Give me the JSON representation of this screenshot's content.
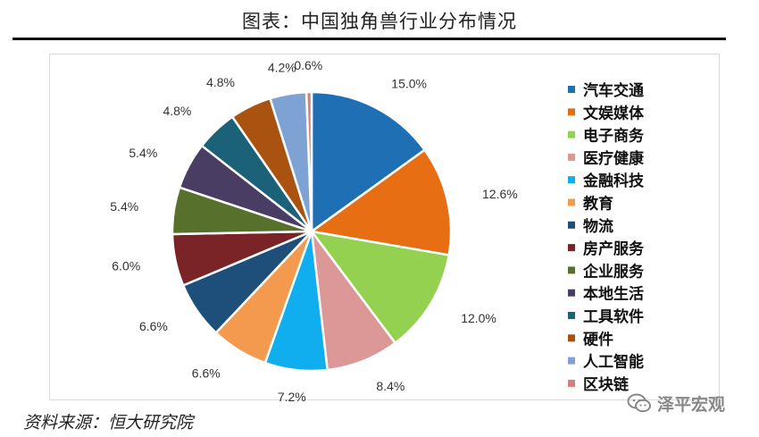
{
  "title": "图表：中国独角兽行业分布情况",
  "source": "资料来源：恒大研究院",
  "watermark": "泽平宏观",
  "chart_data": {
    "type": "pie",
    "title": "图表：中国独角兽行业分布情况",
    "legend_position": "right",
    "unit": "%",
    "slices": [
      {
        "label": "汽车交通",
        "value": 15.0,
        "display": "15.0%",
        "color": "#1F6FB4"
      },
      {
        "label": "文娱媒体",
        "value": 12.6,
        "display": "12.6%",
        "color": "#E86E13"
      },
      {
        "label": "电子商务",
        "value": 12.0,
        "display": "12.0%",
        "color": "#94D150"
      },
      {
        "label": "医疗健康",
        "value": 8.4,
        "display": "8.4%",
        "color": "#DC9797"
      },
      {
        "label": "金融科技",
        "value": 7.2,
        "display": "7.2%",
        "color": "#10ADEF"
      },
      {
        "label": "教育",
        "value": 6.6,
        "display": "6.6%",
        "color": "#F39A4E"
      },
      {
        "label": "物流",
        "value": 6.6,
        "display": "6.6%",
        "color": "#1E4E7A"
      },
      {
        "label": "房产服务",
        "value": 6.0,
        "display": "6.0%",
        "color": "#7B2428"
      },
      {
        "label": "企业服务",
        "value": 5.4,
        "display": "5.4%",
        "color": "#57702B"
      },
      {
        "label": "本地生活",
        "value": 5.4,
        "display": "5.4%",
        "color": "#4A3D63"
      },
      {
        "label": "工具软件",
        "value": 4.8,
        "display": "4.8%",
        "color": "#1B6278"
      },
      {
        "label": "硬件",
        "value": 4.8,
        "display": "4.8%",
        "color": "#AA520F"
      },
      {
        "label": "人工智能",
        "value": 4.2,
        "display": "4.2%",
        "color": "#7DA2D3"
      },
      {
        "label": "区块链",
        "value": 0.6,
        "display": "0.6%",
        "color": "#D67F7B"
      }
    ]
  }
}
